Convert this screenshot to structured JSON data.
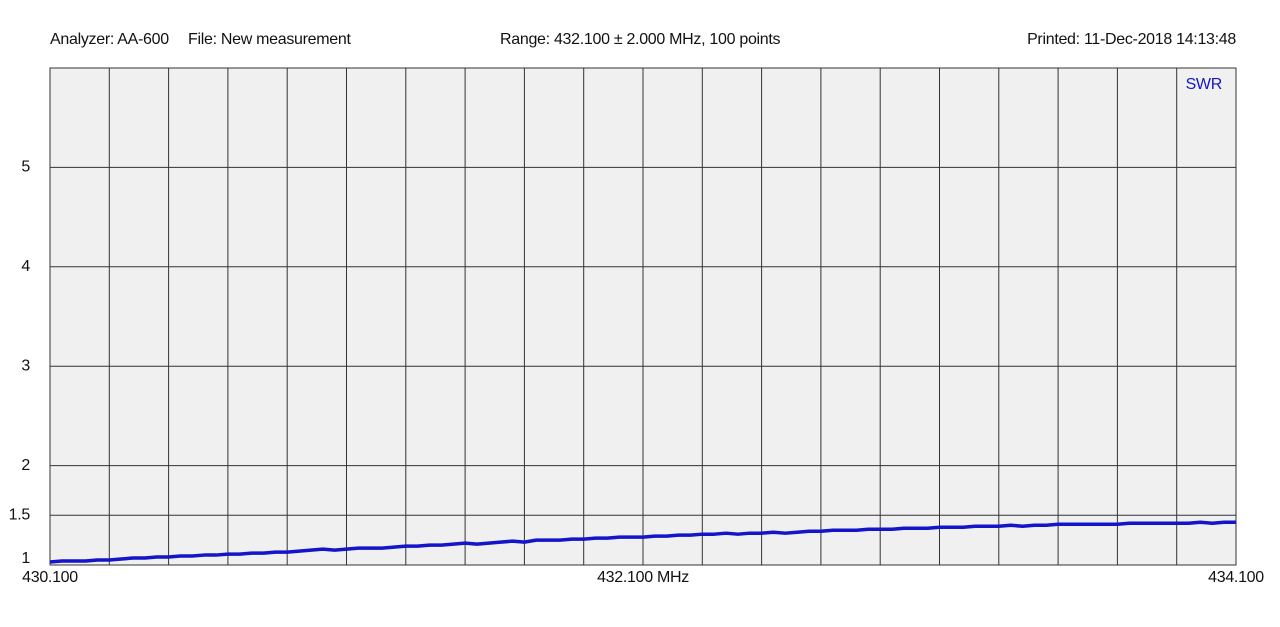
{
  "chart_data": {
    "type": "line",
    "analyzer": "Analyzer: AA-600",
    "file": "File: New measurement",
    "range": "Range: 432.100 ± 2.000 MHz, 100 points",
    "printed": "Printed: 11-Dec-2018 14:13:48",
    "xlim": [
      430.1,
      434.1
    ],
    "ylim": [
      1,
      6
    ],
    "yticks": [
      1,
      1.5,
      2,
      3,
      4,
      5
    ],
    "xticks": [
      {
        "value": 430.1,
        "label": "430.100"
      },
      {
        "value": 430.3,
        "label": null
      },
      {
        "value": 430.5,
        "label": null
      },
      {
        "value": 430.7,
        "label": null
      },
      {
        "value": 430.9,
        "label": null
      },
      {
        "value": 431.1,
        "label": null
      },
      {
        "value": 431.3,
        "label": null
      },
      {
        "value": 431.5,
        "label": null
      },
      {
        "value": 431.7,
        "label": null
      },
      {
        "value": 431.9,
        "label": null
      },
      {
        "value": 432.1,
        "label": "432.100 MHz"
      },
      {
        "value": 432.3,
        "label": null
      },
      {
        "value": 432.5,
        "label": null
      },
      {
        "value": 432.7,
        "label": null
      },
      {
        "value": 432.9,
        "label": null
      },
      {
        "value": 433.1,
        "label": null
      },
      {
        "value": 433.3,
        "label": null
      },
      {
        "value": 433.5,
        "label": null
      },
      {
        "value": 433.7,
        "label": null
      },
      {
        "value": 433.9,
        "label": null
      },
      {
        "value": 434.1,
        "label": "434.100"
      }
    ],
    "grid": true,
    "legend": "top-right",
    "x": [
      430.1,
      430.14,
      430.18,
      430.22,
      430.26,
      430.3,
      430.34,
      430.38,
      430.42,
      430.46,
      430.5,
      430.54,
      430.58,
      430.62,
      430.66,
      430.7,
      430.74,
      430.78,
      430.82,
      430.86,
      430.9,
      430.94,
      430.98,
      431.02,
      431.06,
      431.1,
      431.14,
      431.18,
      431.22,
      431.26,
      431.3,
      431.34,
      431.38,
      431.42,
      431.46,
      431.5,
      431.54,
      431.58,
      431.62,
      431.66,
      431.7,
      431.74,
      431.78,
      431.82,
      431.86,
      431.9,
      431.94,
      431.98,
      432.02,
      432.06,
      432.1,
      432.14,
      432.18,
      432.22,
      432.26,
      432.3,
      432.34,
      432.38,
      432.42,
      432.46,
      432.5,
      432.54,
      432.58,
      432.62,
      432.66,
      432.7,
      432.74,
      432.78,
      432.82,
      432.86,
      432.9,
      432.94,
      432.98,
      433.02,
      433.06,
      433.1,
      433.14,
      433.18,
      433.22,
      433.26,
      433.3,
      433.34,
      433.38,
      433.42,
      433.46,
      433.5,
      433.54,
      433.58,
      433.62,
      433.66,
      433.7,
      433.74,
      433.78,
      433.82,
      433.86,
      433.9,
      433.94,
      433.98,
      434.02,
      434.06,
      434.1
    ],
    "series": [
      {
        "name": "SWR",
        "color": "#1414c8",
        "values": [
          1.03,
          1.04,
          1.04,
          1.04,
          1.05,
          1.05,
          1.06,
          1.07,
          1.07,
          1.08,
          1.08,
          1.09,
          1.09,
          1.1,
          1.1,
          1.11,
          1.11,
          1.12,
          1.12,
          1.13,
          1.13,
          1.14,
          1.15,
          1.16,
          1.15,
          1.16,
          1.17,
          1.17,
          1.17,
          1.18,
          1.19,
          1.19,
          1.2,
          1.2,
          1.21,
          1.22,
          1.21,
          1.22,
          1.23,
          1.24,
          1.23,
          1.25,
          1.25,
          1.25,
          1.26,
          1.26,
          1.27,
          1.27,
          1.28,
          1.28,
          1.28,
          1.29,
          1.29,
          1.3,
          1.3,
          1.31,
          1.31,
          1.32,
          1.31,
          1.32,
          1.32,
          1.33,
          1.32,
          1.33,
          1.34,
          1.34,
          1.35,
          1.35,
          1.35,
          1.36,
          1.36,
          1.36,
          1.37,
          1.37,
          1.37,
          1.38,
          1.38,
          1.38,
          1.39,
          1.39,
          1.39,
          1.4,
          1.39,
          1.4,
          1.4,
          1.41,
          1.41,
          1.41,
          1.41,
          1.41,
          1.41,
          1.42,
          1.42,
          1.42,
          1.42,
          1.42,
          1.42,
          1.43,
          1.42,
          1.43,
          1.43
        ]
      }
    ]
  }
}
